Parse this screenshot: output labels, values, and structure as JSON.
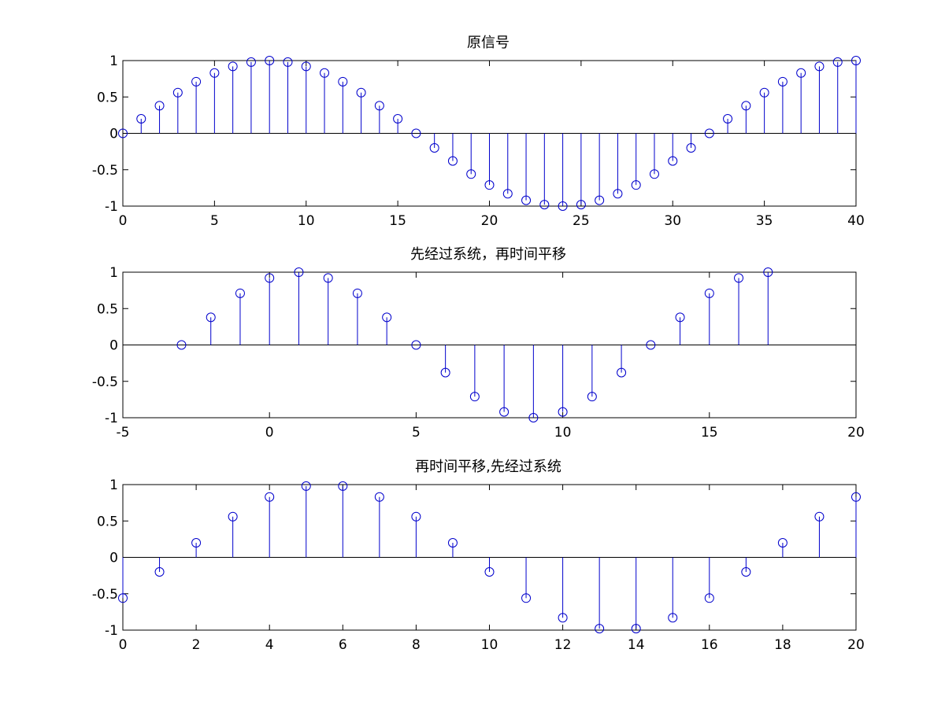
{
  "chart_data": [
    {
      "type": "stem",
      "title": "原信号",
      "xlabel": "",
      "ylabel": "",
      "xlim": [
        0,
        40
      ],
      "ylim": [
        -1,
        1
      ],
      "xticks": [
        "0",
        "5",
        "10",
        "15",
        "20",
        "25",
        "30",
        "35",
        "40"
      ],
      "yticks": [
        "-1",
        "-0.5",
        "0",
        "0.5",
        "1"
      ],
      "color": "#0000cc",
      "x": [
        0,
        1,
        2,
        3,
        4,
        5,
        6,
        7,
        8,
        9,
        10,
        11,
        12,
        13,
        14,
        15,
        16,
        17,
        18,
        19,
        20,
        21,
        22,
        23,
        24,
        25,
        26,
        27,
        28,
        29,
        30,
        31,
        32,
        33,
        34,
        35,
        36,
        37,
        38,
        39,
        40
      ],
      "values": [
        0,
        0.2,
        0.38,
        0.56,
        0.71,
        0.83,
        0.92,
        0.98,
        1,
        0.98,
        0.92,
        0.83,
        0.71,
        0.56,
        0.38,
        0.2,
        0,
        -0.2,
        -0.38,
        -0.56,
        -0.71,
        -0.83,
        -0.92,
        -0.98,
        -1,
        -0.98,
        -0.92,
        -0.83,
        -0.71,
        -0.56,
        -0.38,
        -0.2,
        0,
        0.2,
        0.38,
        0.56,
        0.71,
        0.83,
        0.92,
        0.98,
        1
      ]
    },
    {
      "type": "stem",
      "title": "先经过系统，再时间平移",
      "xlabel": "",
      "ylabel": "",
      "xlim": [
        -5,
        20
      ],
      "ylim": [
        -1,
        1
      ],
      "xticks": [
        "-5",
        "0",
        "5",
        "10",
        "15",
        "20"
      ],
      "yticks": [
        "-1",
        "-0.5",
        "0",
        "0.5",
        "1"
      ],
      "color": "#0000cc",
      "x": [
        -3,
        -2,
        -1,
        0,
        1,
        2,
        3,
        4,
        5,
        6,
        7,
        8,
        9,
        10,
        11,
        12,
        13,
        14,
        15,
        16,
        17
      ],
      "values": [
        0,
        0.38,
        0.71,
        0.92,
        1,
        0.92,
        0.71,
        0.38,
        0,
        -0.38,
        -0.71,
        -0.92,
        -1,
        -0.92,
        -0.71,
        -0.38,
        0,
        0.38,
        0.71,
        0.92,
        1
      ]
    },
    {
      "type": "stem",
      "title": "再时间平移,先经过系统",
      "xlabel": "",
      "ylabel": "",
      "xlim": [
        0,
        20
      ],
      "ylim": [
        -1,
        1
      ],
      "xticks": [
        "0",
        "2",
        "4",
        "6",
        "8",
        "10",
        "12",
        "14",
        "16",
        "18",
        "20"
      ],
      "yticks": [
        "-1",
        "-0.5",
        "0",
        "0.5",
        "1"
      ],
      "color": "#0000cc",
      "x": [
        0,
        1,
        2,
        3,
        4,
        5,
        6,
        7,
        8,
        9,
        10,
        11,
        12,
        13,
        14,
        15,
        16,
        17,
        18,
        19,
        20
      ],
      "values": [
        -0.56,
        -0.2,
        0.2,
        0.56,
        0.83,
        0.98,
        0.98,
        0.83,
        0.56,
        0.2,
        -0.2,
        -0.56,
        -0.83,
        -0.98,
        -0.98,
        -0.83,
        -0.56,
        -0.2,
        0.2,
        0.56,
        0.83
      ]
    }
  ]
}
